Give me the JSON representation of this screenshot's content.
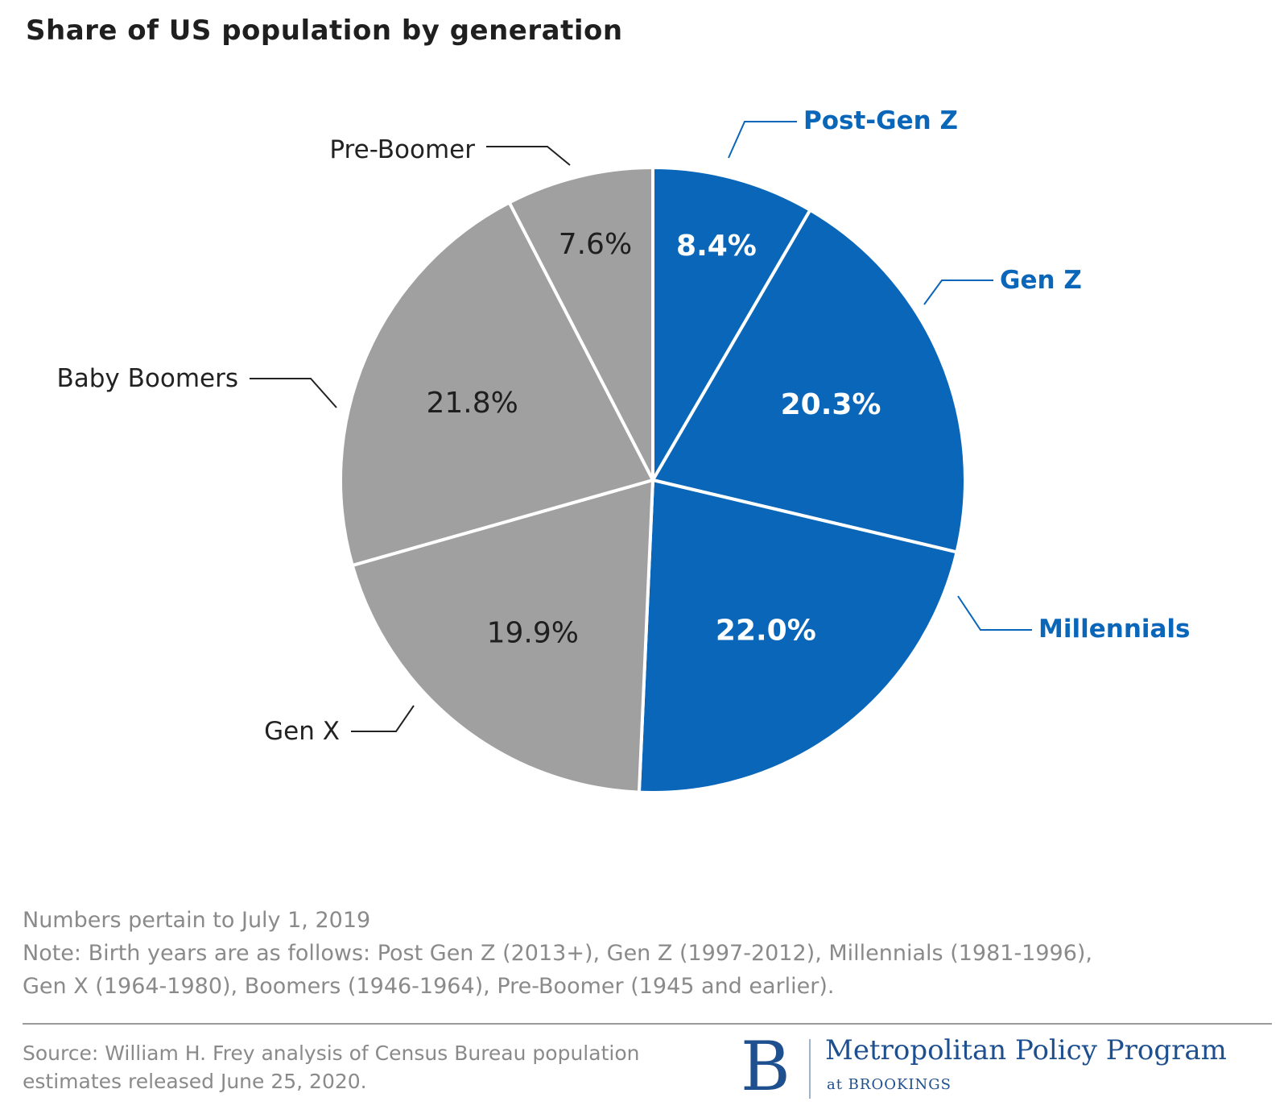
{
  "chart_data": {
    "type": "pie",
    "title": "Share of US population by generation",
    "slices": [
      {
        "label": "Post-Gen Z",
        "value": 8.4,
        "value_label": "8.4%",
        "color": "#0a66b8",
        "label_color": "#0a66b8",
        "text_color": "#ffffff"
      },
      {
        "label": "Gen Z",
        "value": 20.3,
        "value_label": "20.3%",
        "color": "#0a66b8",
        "label_color": "#0a66b8",
        "text_color": "#ffffff"
      },
      {
        "label": "Millennials",
        "value": 22.0,
        "value_label": "22.0%",
        "color": "#0a66b8",
        "label_color": "#0a66b8",
        "text_color": "#ffffff"
      },
      {
        "label": "Gen X",
        "value": 19.9,
        "value_label": "19.9%",
        "color": "#a0a0a0",
        "label_color": "#222222",
        "text_color": "#1f1f1f"
      },
      {
        "label": "Baby Boomers",
        "value": 21.8,
        "value_label": "21.8%",
        "color": "#a0a0a0",
        "label_color": "#222222",
        "text_color": "#1f1f1f"
      },
      {
        "label": "Pre-Boomer",
        "value": 7.6,
        "value_label": "7.6%",
        "color": "#a0a0a0",
        "label_color": "#222222",
        "text_color": "#1f1f1f"
      }
    ]
  },
  "notes": {
    "line1": "Numbers pertain to July 1, 2019",
    "line2": "Note: Birth years are as follows: Post Gen Z (2013+), Gen Z (1997-2012), Millennials (1981-1996),",
    "line3": "Gen X (1964-1980), Boomers (1946-1964), Pre-Boomer (1945 and earlier)."
  },
  "source": {
    "line1": "Source: William H. Frey analysis of Census Bureau population",
    "line2": "estimates released June 25, 2020."
  },
  "logo": {
    "mark": "B",
    "name": "Metropolitan Policy Program",
    "sub": "at BROOKINGS"
  }
}
